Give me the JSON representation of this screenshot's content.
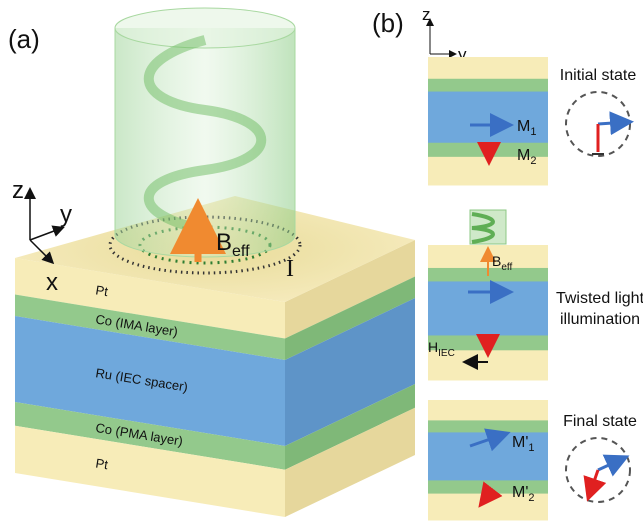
{
  "panel_a": {
    "label": "(a)",
    "axes": {
      "z": "z",
      "y": "y",
      "x": "x"
    },
    "field": {
      "symbol": "B",
      "subscript": "eff"
    },
    "current": "I",
    "layers": [
      "Pt",
      "Co (IMA layer)",
      "Ru (IEC spacer)",
      "Co (PMA layer)",
      "Pt"
    ]
  },
  "panel_b": {
    "label": "(b)",
    "axes": {
      "z": "z",
      "y": "y"
    },
    "initial": {
      "title": "Initial state",
      "m1": {
        "symbol": "M",
        "subscript": "1"
      },
      "m2": {
        "symbol": "M",
        "subscript": "2"
      }
    },
    "illumination": {
      "title_lines": [
        "Twisted light",
        "illumination"
      ],
      "field": {
        "symbol": "B",
        "subscript": "eff"
      },
      "coupling": {
        "symbol": "H",
        "subscript": "IEC"
      }
    },
    "final": {
      "title": "Final state",
      "m1": {
        "symbol": "M'",
        "subscript": "1"
      },
      "m2": {
        "symbol": "M'",
        "subscript": "2"
      }
    }
  }
}
